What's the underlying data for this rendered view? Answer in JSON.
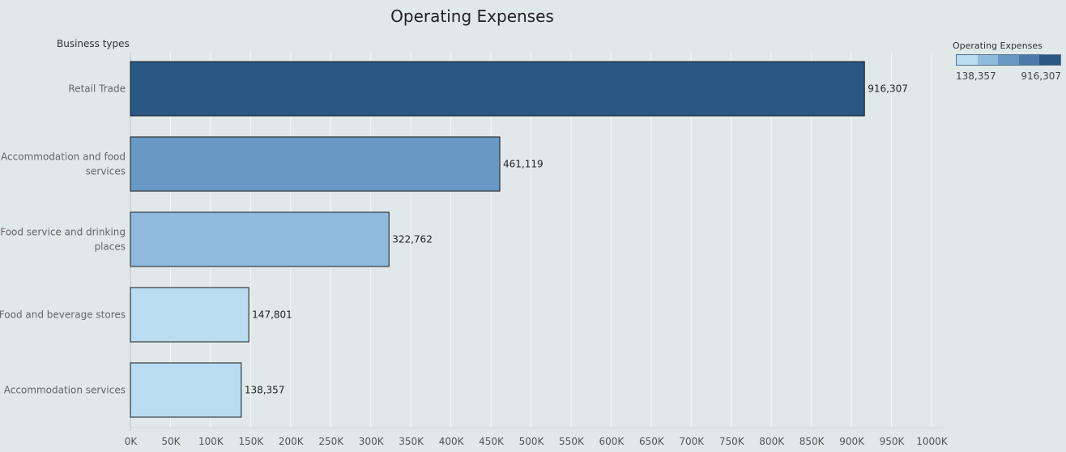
{
  "chart_data": {
    "type": "bar",
    "orientation": "horizontal",
    "title": "Operating Expenses",
    "row_header": "Business types",
    "categories": [
      [
        "Retail Trade"
      ],
      [
        "Accommodation and food",
        "services"
      ],
      [
        "Food service and drinking",
        "places"
      ],
      [
        "Food and beverage stores"
      ],
      [
        "Accommodation services"
      ]
    ],
    "values": [
      916307,
      461119,
      322762,
      147801,
      138357
    ],
    "data_labels": [
      "916,307",
      "461,119",
      "322,762",
      "147,801",
      "138,357"
    ],
    "xlim": [
      0,
      1000000
    ],
    "x_ticks": [
      "0K",
      "50K",
      "100K",
      "150K",
      "200K",
      "250K",
      "300K",
      "350K",
      "400K",
      "450K",
      "500K",
      "550K",
      "600K",
      "650K",
      "700K",
      "750K",
      "800K",
      "850K",
      "900K",
      "950K",
      "1000K"
    ],
    "grid": "vertical",
    "legend": {
      "title": "Operating Expenses",
      "min_label": "138,357",
      "max_label": "916,307",
      "placement": "top-right",
      "ramp_colors": [
        "#b9dcf0",
        "#8fbadc",
        "#6899c4",
        "#4c7aa8",
        "#2a5784"
      ]
    },
    "colors": {
      "background": "#e0e8ea",
      "gridline": "#f4f7f8",
      "bar_outline": "#1a1a1a",
      "bar_colors": [
        "#2a5784",
        "#6899c4",
        "#8fbadc",
        "#b9dcf0",
        "#b9dcf0"
      ]
    }
  }
}
